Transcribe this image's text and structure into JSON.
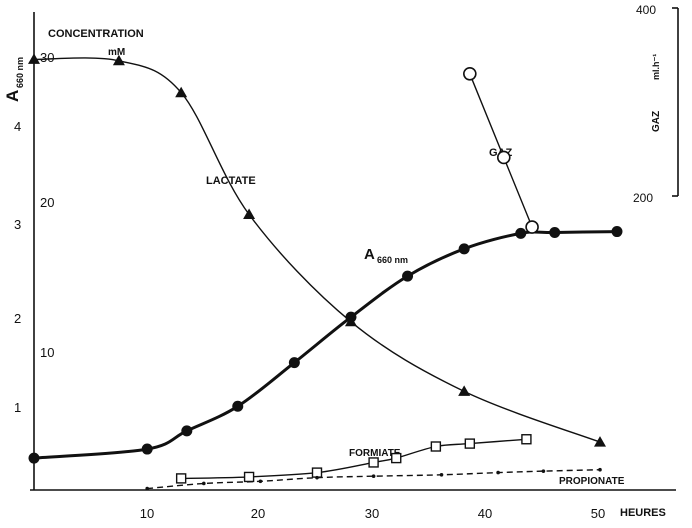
{
  "chart_data": {
    "type": "line",
    "labels": {
      "left_a660": "A",
      "left_a660_sub": "660 nm",
      "concentration": "CONCENTRATION",
      "concentration_unit": "mM",
      "right_axis": "GAZ",
      "right_axis_unit": "ml.h⁻¹",
      "x_axis": "HEURES"
    },
    "x_axis": {
      "ticks": [
        "10",
        "20",
        "30",
        "40",
        "50"
      ],
      "range": [
        0,
        52
      ]
    },
    "y_axis_a660": {
      "ticks": [
        "1",
        "2",
        "3",
        "4"
      ],
      "range": [
        0,
        4.3
      ]
    },
    "y_axis_concentration": {
      "ticks": [
        "10",
        "20",
        "30"
      ],
      "range": [
        0,
        32
      ]
    },
    "y_axis_gaz": {
      "ticks": [
        "200",
        "400"
      ],
      "range": [
        0,
        400
      ]
    },
    "series": [
      {
        "name": "A660 nm",
        "axis": "a660",
        "marker": "filled-circle",
        "line": "thick",
        "x": [
          0,
          10,
          13.5,
          18,
          23,
          28,
          33,
          38,
          43,
          46,
          51.5
        ],
        "y": [
          0.35,
          0.45,
          0.65,
          0.92,
          1.4,
          1.9,
          2.35,
          2.65,
          2.82,
          2.83,
          2.84
        ]
      },
      {
        "name": "LACTATE",
        "axis": "concentration",
        "marker": "filled-triangle",
        "line": "thin",
        "x": [
          0,
          7.5,
          13,
          19,
          28,
          38,
          50
        ],
        "y": [
          29.7,
          29.6,
          27.4,
          19.0,
          11.6,
          6.8,
          3.3
        ]
      },
      {
        "name": "FORMIATE",
        "axis": "concentration",
        "marker": "open-square",
        "line": "thin",
        "x": [
          13,
          19,
          25,
          30,
          32,
          35.5,
          38.5,
          43.5
        ],
        "y": [
          0.8,
          0.9,
          1.2,
          1.9,
          2.2,
          3.0,
          3.2,
          3.5
        ]
      },
      {
        "name": "PROPIONATE",
        "axis": "concentration",
        "marker": "small-dot",
        "line": "dashed",
        "x": [
          10,
          15,
          20,
          25,
          30,
          36,
          41,
          45,
          50
        ],
        "y": [
          0.1,
          0.45,
          0.6,
          0.85,
          0.95,
          1.05,
          1.2,
          1.3,
          1.4
        ]
      },
      {
        "name": "GAZ",
        "axis": "gaz",
        "marker": "open-circle",
        "line": "thin",
        "x": [
          38.5,
          41.5,
          44
        ],
        "y": [
          330,
          241,
          167
        ]
      }
    ],
    "annotations": [
      {
        "text": "LACTATE",
        "series": "LACTATE"
      },
      {
        "text": "A",
        "sub": "660 nm",
        "series": "A660 nm"
      },
      {
        "text": "GAZ",
        "series": "GAZ"
      },
      {
        "text": "FORMIATE",
        "series": "FORMIATE"
      },
      {
        "text": "PROPIONATE",
        "series": "PROPIONATE"
      }
    ],
    "grid": false,
    "legend": "none"
  }
}
